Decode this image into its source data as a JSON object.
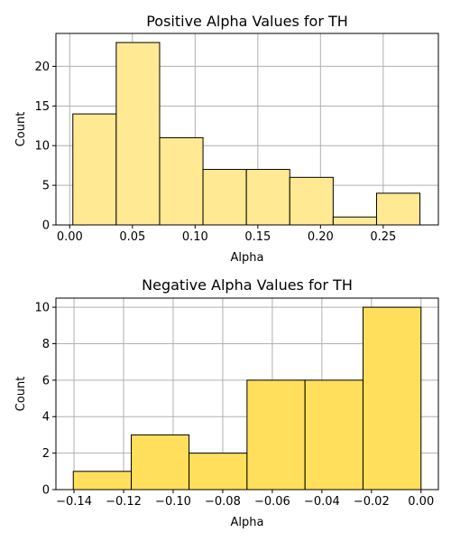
{
  "chart_data": [
    {
      "type": "bar",
      "title": "Positive Alpha Values for TH",
      "xlabel": "Alpha",
      "ylabel": "Count",
      "bin_edges": [
        0.0025,
        0.0371,
        0.0717,
        0.1063,
        0.1409,
        0.1755,
        0.2101,
        0.2447,
        0.2793
      ],
      "values": [
        14,
        23,
        11,
        7,
        7,
        6,
        1,
        4
      ],
      "xlim": [
        -0.011,
        0.294
      ],
      "ylim": [
        0,
        24.15
      ],
      "xticks": [
        0.0,
        0.05,
        0.1,
        0.15,
        0.2,
        0.25
      ],
      "xtick_labels": [
        "0.00",
        "0.05",
        "0.10",
        "0.15",
        "0.20",
        "0.25"
      ],
      "yticks": [
        0,
        5,
        10,
        15,
        20
      ],
      "ytick_labels": [
        "0",
        "5",
        "10",
        "15",
        "20"
      ],
      "grid": true,
      "bar_color": "#ffe993",
      "edge_color": "#000000"
    },
    {
      "type": "bar",
      "title": "Negative Alpha Values for TH",
      "xlabel": "Alpha",
      "ylabel": "Count",
      "bin_edges": [
        -0.1403,
        -0.1169,
        -0.0936,
        -0.0702,
        -0.0468,
        -0.0234,
        0.0
      ],
      "values": [
        1,
        3,
        2,
        6,
        6,
        10
      ],
      "xlim": [
        -0.1473,
        0.007
      ],
      "ylim": [
        0,
        10.5
      ],
      "xticks": [
        -0.14,
        -0.12,
        -0.1,
        -0.08,
        -0.06,
        -0.04,
        -0.02,
        0.0
      ],
      "xtick_labels": [
        "−0.14",
        "−0.12",
        "−0.10",
        "−0.08",
        "−0.06",
        "−0.04",
        "−0.02",
        "0.00"
      ],
      "yticks": [
        0,
        2,
        4,
        6,
        8,
        10
      ],
      "ytick_labels": [
        "0",
        "2",
        "4",
        "6",
        "8",
        "10"
      ],
      "grid": true,
      "bar_color": "#ffdf5b",
      "edge_color": "#000000"
    }
  ]
}
